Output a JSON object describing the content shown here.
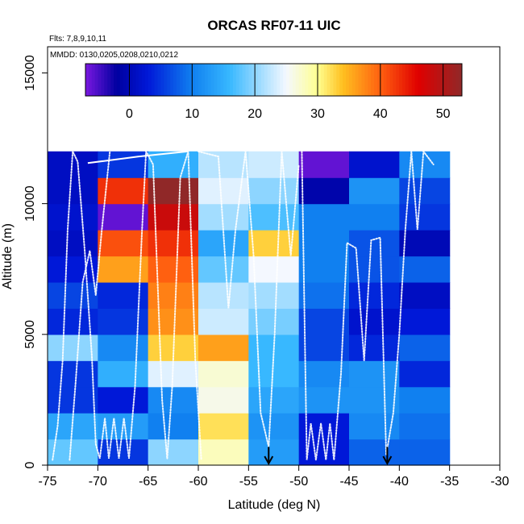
{
  "chart_data": {
    "type": "heatmap",
    "title": "ORCAS RF07-11 UIC",
    "flights_note": "Flts: 7,8,9,10,11",
    "dates_note": "MMDD: 0130,0205,0208,0210,0212",
    "xlabel": "Latitude (deg N)",
    "ylabel": "Altitude (m)",
    "xlim": [
      -75,
      -30
    ],
    "ylim": [
      0,
      16000
    ],
    "x_ticks": [
      -75,
      -70,
      -65,
      -60,
      -55,
      -50,
      -45,
      -40,
      -35,
      -30
    ],
    "x_tick_labels": [
      "-75",
      "-70",
      "-65",
      "-60",
      "-55",
      "-50",
      "-45",
      "-40",
      "-35",
      "-30"
    ],
    "y_ticks": [
      0,
      5000,
      10000,
      15000
    ],
    "y_tick_labels": [
      "0",
      "5000",
      "10000",
      "15000"
    ],
    "colorbar": {
      "range": [
        -7,
        53
      ],
      "ticks": [
        0,
        10,
        20,
        30,
        40,
        50
      ],
      "tick_labels": [
        "0",
        "10",
        "20",
        "30",
        "40",
        "50"
      ],
      "color_stops": [
        {
          "value": -7,
          "color": "#7a18e0"
        },
        {
          "value": -2,
          "color": "#0000a0"
        },
        {
          "value": 3,
          "color": "#0018d8"
        },
        {
          "value": 10,
          "color": "#1080f0"
        },
        {
          "value": 16,
          "color": "#38b8ff"
        },
        {
          "value": 22,
          "color": "#b8e4ff"
        },
        {
          "value": 25,
          "color": "#f4f8ff"
        },
        {
          "value": 30,
          "color": "#ffff90"
        },
        {
          "value": 34,
          "color": "#ffc020"
        },
        {
          "value": 40,
          "color": "#ff6010"
        },
        {
          "value": 46,
          "color": "#e00000"
        },
        {
          "value": 53,
          "color": "#902828"
        }
      ]
    },
    "grid": {
      "lat_edges": [
        -75,
        -70,
        -65,
        -60,
        -55,
        -50,
        -45,
        -40,
        -35
      ],
      "alt_bin_m": 1000,
      "alt_max_m": 12000,
      "alt_rows_bottom_to_top": [
        [
          18,
          5,
          20,
          28,
          13,
          3,
          8,
          8
        ],
        [
          14,
          13,
          10,
          32,
          12,
          3,
          11,
          9
        ],
        [
          5,
          3,
          11,
          26,
          14,
          12,
          12,
          10
        ],
        [
          5,
          15,
          24,
          27,
          16,
          11,
          12,
          4
        ],
        [
          20,
          11,
          33,
          36,
          16,
          6,
          4,
          8
        ],
        [
          4,
          5,
          37,
          23,
          19,
          6,
          2,
          3
        ],
        [
          6,
          4,
          38,
          22,
          21,
          9,
          4,
          1
        ],
        [
          3,
          36,
          40,
          18,
          25,
          10,
          7,
          8
        ],
        [
          1,
          41,
          43,
          14,
          33,
          10,
          7,
          0
        ],
        [
          2,
          -6,
          48,
          21,
          17,
          10,
          10,
          5
        ],
        [
          1,
          43,
          53,
          24,
          20,
          -1,
          12,
          6
        ],
        [
          1,
          5,
          15,
          22,
          23,
          -6,
          2,
          11
        ]
      ]
    },
    "markers_latitude": [
      -53,
      -41.2
    ]
  }
}
